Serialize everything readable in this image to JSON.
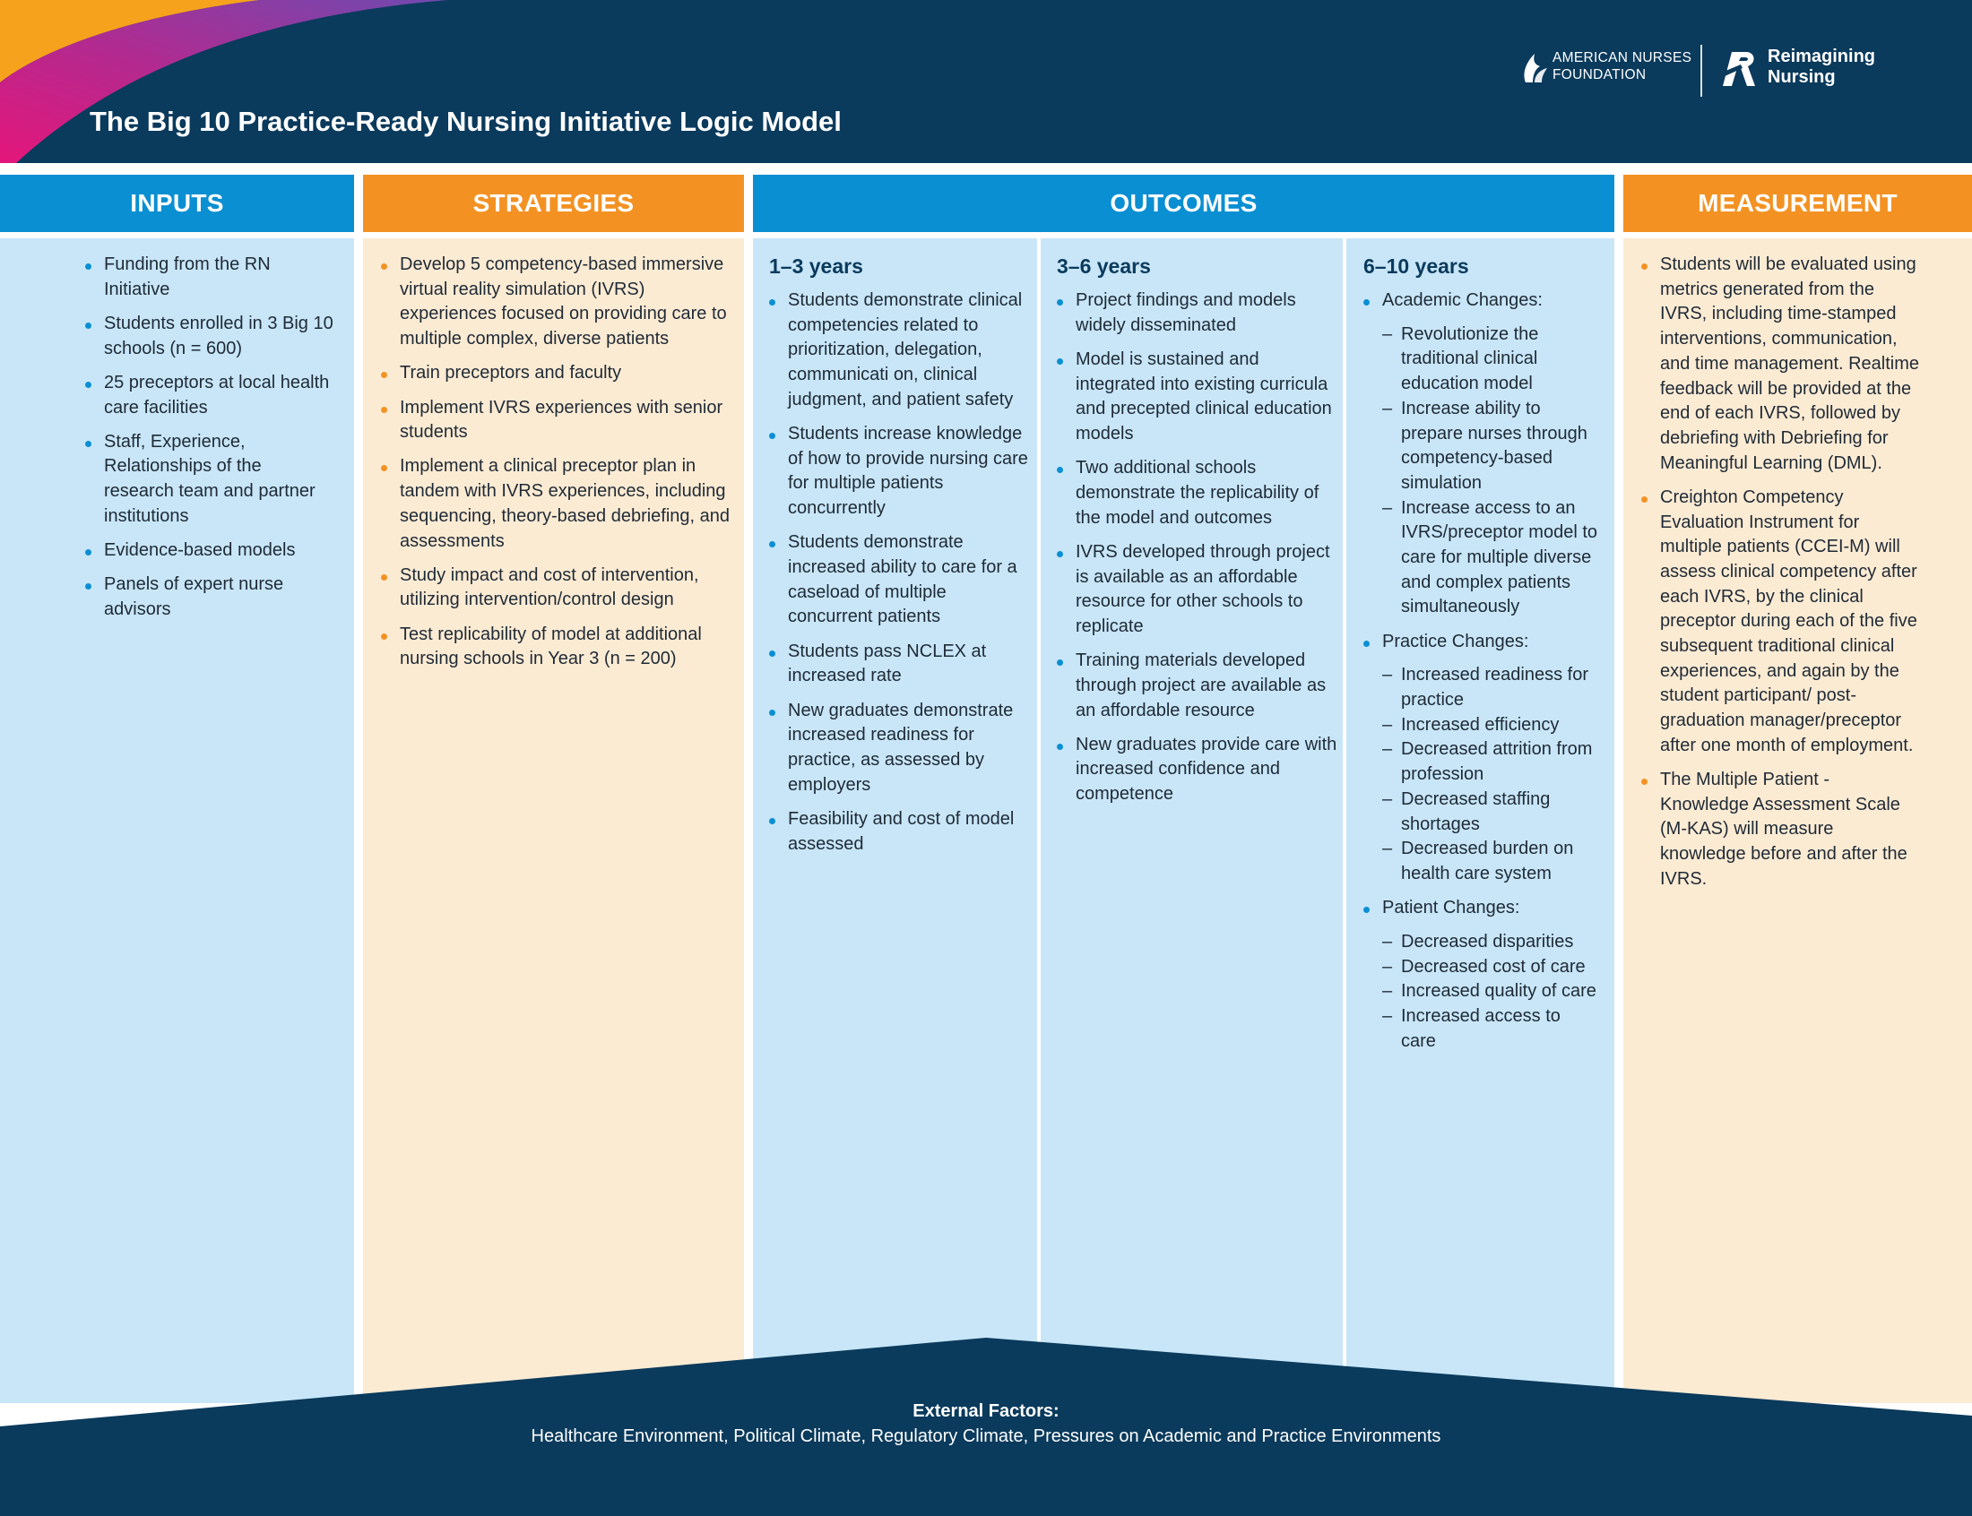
{
  "header": {
    "title": "The Big 10 Practice-Ready Nursing Initiative Logic Model",
    "logos": [
      {
        "name": "American Nurses Foundation",
        "line1": "AMERICAN NURSES",
        "line2": "FOUNDATION"
      },
      {
        "name": "Reimagining Nursing",
        "line1": "Reimagining",
        "line2": "Nursing"
      }
    ]
  },
  "columns": {
    "inputs": {
      "heading": "INPUTS",
      "items": [
        "Funding from the RN Initiative",
        "Students enrolled in 3 Big 10 schools (n = 600)",
        "25 preceptors at local health care facilities",
        "Staff, Experience, Relationships of the research team and partner institutions",
        "Evidence-based models",
        "Panels of expert nurse advisors"
      ]
    },
    "strategies": {
      "heading": "STRATEGIES",
      "items": [
        "Develop 5 competency-based immersive virtual reality simulation (IVRS) experiences focused on providing care to multiple complex, diverse patients",
        "Train preceptors and faculty",
        "Implement IVRS experiences with senior students",
        "Implement a clinical preceptor plan in tandem with IVRS experiences, including sequencing, theory-based debriefing, and assessments",
        "Study impact and cost of intervention, utilizing intervention/control design",
        "Test replicability of model at additional nursing schools in Year 3 (n = 200)"
      ]
    },
    "outcomes": {
      "heading": "OUTCOMES",
      "periods": [
        {
          "title": "1–3 years",
          "items": [
            {
              "text": "Students demonstrate clinical competencies related to prioritization, delegation, communicati on, clinical judgment, and patient safety"
            },
            {
              "text": "Students increase knowledge of how to provide nursing care for multiple patients concurrently"
            },
            {
              "text": "Students demonstrate increased ability to care for a caseload of multiple concurrent patients"
            },
            {
              "text": "Students pass NCLEX at increased rate"
            },
            {
              "text": "New graduates demonstrate increased readiness for practice, as assessed by employers"
            },
            {
              "text": "Feasibility and cost of model assessed"
            }
          ]
        },
        {
          "title": "3–6 years",
          "items": [
            {
              "text": "Project findings and models widely disseminated"
            },
            {
              "text": "Model is sustained and integrated into existing curricula and precepted clinical education models"
            },
            {
              "text": "Two additional schools demonstrate the replicability of the model and outcomes"
            },
            {
              "text": "IVRS developed through project is available as an affordable resource for other schools to replicate"
            },
            {
              "text": "Training materials developed through project are available as an affordable resource"
            },
            {
              "text": "New graduates provide care with increased confidence and competence"
            }
          ]
        },
        {
          "title": "6–10 years",
          "items": [
            {
              "text": "Academic Changes:",
              "sub": [
                "Revolutionize the traditional clinical education model",
                "Increase ability to prepare nurses through competency-based simulation",
                "Increase access to an IVRS/preceptor model to care for multiple diverse and complex patients simultaneously"
              ]
            },
            {
              "text": "Practice Changes:",
              "sub": [
                "Increased readiness for practice",
                "Increased efficiency",
                "Decreased attrition from profession",
                "Decreased staffing shortages",
                "Decreased burden on health care system"
              ]
            },
            {
              "text": "Patient Changes:",
              "sub": [
                "Decreased disparities",
                "Decreased cost of care",
                "Increased quality of care",
                "Increased access to care"
              ]
            }
          ]
        }
      ]
    },
    "measurement": {
      "heading": "MEASUREMENT",
      "items": [
        "Students will be evaluated using metrics generated from the IVRS, including time-stamped interventions, communication, and time management. Realtime feedback will be provided at the end of each IVRS, followed by debriefing with Debriefing for Meaningful Learning (DML).",
        "Creighton Competency Evaluation Instrument for multiple patients (CCEI-M) will assess clinical competency after each IVRS, by the clinical preceptor during each of the five subsequent traditional clinical experiences, and again by the student participant/ post-graduation manager/preceptor after one month of employment.",
        "The Multiple Patient - Knowledge Assessment Scale (M-KAS) will measure knowledge before and after the IVRS."
      ]
    }
  },
  "footer": {
    "label": "External Factors:",
    "text": "Healthcare Environment, Political Climate, Regulatory Climate, Pressures on Academic and Practice Environments"
  },
  "colors": {
    "navy": "#0a3a5c",
    "blue": "#0a8fd2",
    "orange": "#f39223",
    "light_blue": "#c8e6f8",
    "light_orange": "#fcebd3"
  }
}
